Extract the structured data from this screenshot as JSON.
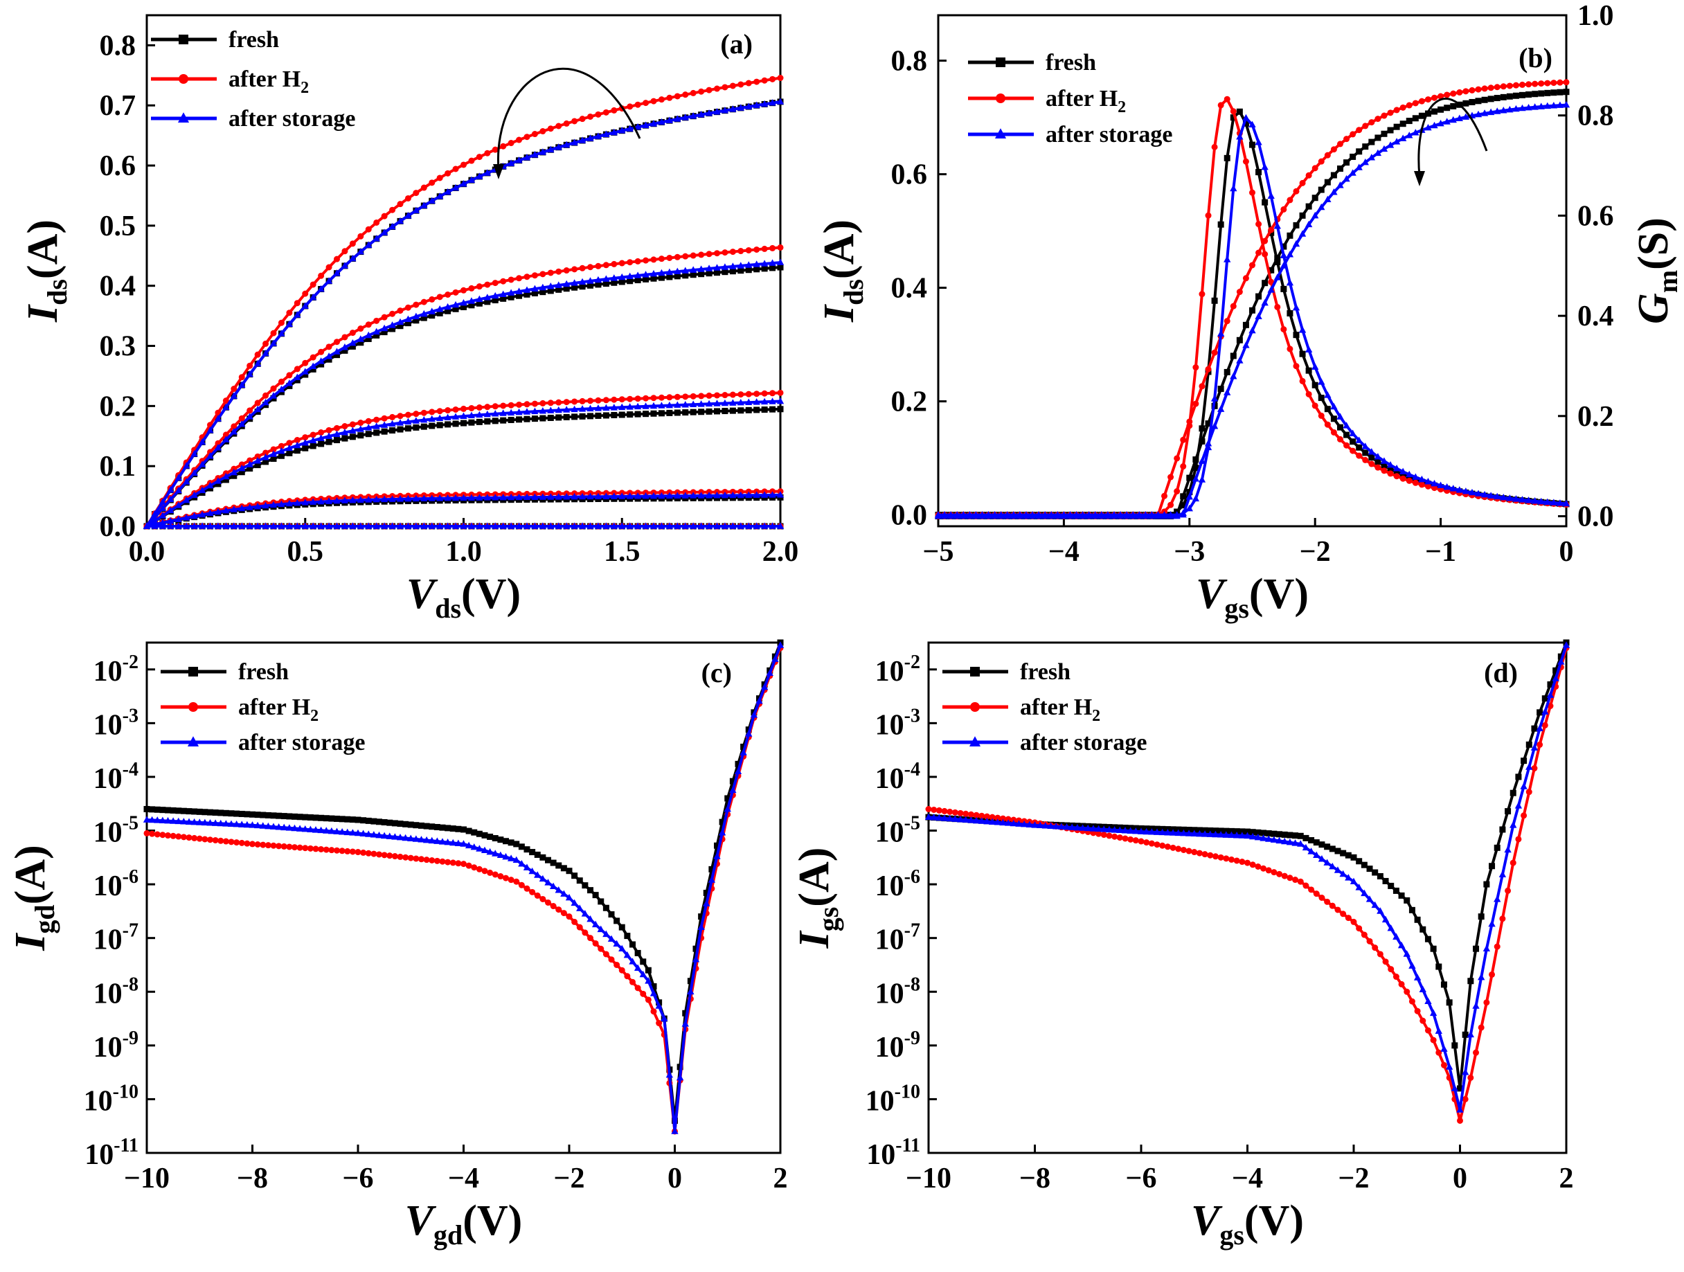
{
  "chart_data": [
    {
      "id": "a",
      "type": "line",
      "panel_label": "(a)",
      "xlabel": {
        "main": "V",
        "sub": "ds",
        "unit": "(V)"
      },
      "ylabel": {
        "main": "I",
        "sub": "ds",
        "unit": "(A)"
      },
      "xlim": [
        0,
        2.0
      ],
      "ylim": [
        0,
        0.85
      ],
      "xticks": [
        0.0,
        0.5,
        1.0,
        1.5,
        2.0
      ],
      "xtick_labels": [
        "0.0",
        "0.5",
        "1.0",
        "1.5",
        "2.0"
      ],
      "yticks": [
        0.0,
        0.1,
        0.2,
        0.3,
        0.4,
        0.5,
        0.6,
        0.7,
        0.8
      ],
      "ytick_labels": [
        "0.0",
        "0.1",
        "0.2",
        "0.3",
        "0.4",
        "0.5",
        "0.6",
        "0.7",
        "0.8"
      ],
      "legend": [
        {
          "name": "fresh",
          "color": "#000000",
          "marker": "square"
        },
        {
          "name": "after H",
          "sub": "2",
          "color": "#ff0000",
          "marker": "circle"
        },
        {
          "name": "after storage",
          "color": "#0000ff",
          "marker": "triangle"
        }
      ],
      "output_curves_saturation_current": [
        {
          "name": "fresh",
          "values": [
            0.0,
            0.048,
            0.195,
            0.432,
            0.712
          ]
        },
        {
          "name": "after H2",
          "values": [
            0.0,
            0.058,
            0.222,
            0.465,
            0.752
          ]
        },
        {
          "name": "after storage",
          "values": [
            0.0,
            0.052,
            0.208,
            0.44,
            0.712
          ]
        }
      ],
      "x_sample": [
        0,
        0.05,
        0.1,
        0.2,
        0.3,
        0.4,
        0.5,
        0.6,
        0.7,
        0.8,
        1.0,
        1.2,
        1.5,
        2.0
      ],
      "annotation": "curved arrow near curves at Vds≈1.3 V"
    },
    {
      "id": "b",
      "type": "line",
      "panel_label": "(b)",
      "xlabel": {
        "main": "V",
        "sub": "gs",
        "unit": "(V)"
      },
      "ylabel": {
        "main": "I",
        "sub": "ds",
        "unit": "(A)"
      },
      "ylabel_right": {
        "main": "G",
        "sub": "m",
        "unit": "(S)"
      },
      "xlim": [
        -5,
        0
      ],
      "ylim": [
        -0.02,
        0.88
      ],
      "ylim_right": [
        -0.02,
        1.0
      ],
      "xticks": [
        -5,
        -4,
        -3,
        -2,
        -1,
        0
      ],
      "xtick_labels": [
        "−5",
        "−4",
        "−3",
        "−2",
        "−1",
        "0"
      ],
      "yticks": [
        0.0,
        0.2,
        0.4,
        0.6,
        0.8
      ],
      "ytick_labels": [
        "0.0",
        "0.2",
        "0.4",
        "0.6",
        "0.8"
      ],
      "yticks_right": [
        0.0,
        0.2,
        0.4,
        0.6,
        0.8,
        1.0
      ],
      "ytick_labels_right": [
        "0.0",
        "0.2",
        "0.4",
        "0.6",
        "0.8",
        "1.0"
      ],
      "legend": [
        {
          "name": "fresh",
          "color": "#000000",
          "marker": "square"
        },
        {
          "name": "after H",
          "sub": "2",
          "color": "#ff0000",
          "marker": "circle"
        },
        {
          "name": "after storage",
          "color": "#0000ff",
          "marker": "triangle"
        }
      ],
      "transfer_series": [
        {
          "name": "fresh",
          "threshold_V": -3.1,
          "ids_at_0V": 0.745,
          "gm_peak_V": -2.62,
          "gm_peak_S": 0.81
        },
        {
          "name": "after H2",
          "threshold_V": -3.25,
          "ids_at_0V": 0.762,
          "gm_peak_V": -2.72,
          "gm_peak_S": 0.835
        },
        {
          "name": "after storage",
          "threshold_V": -3.05,
          "ids_at_0V": 0.722,
          "gm_peak_V": -2.55,
          "gm_peak_S": 0.795
        }
      ],
      "annotation": "curved arrow near Ids curves at Vgs≈−1"
    },
    {
      "id": "c",
      "type": "line",
      "panel_label": "(c)",
      "xlabel": {
        "main": "V",
        "sub": "gd",
        "unit": "(V)"
      },
      "ylabel": {
        "main": "I",
        "sub": "gd",
        "unit": "(A)"
      },
      "yscale": "log",
      "xlim": [
        -10,
        2
      ],
      "ylim_exp": [
        -11,
        -1.5
      ],
      "xticks": [
        -10,
        -8,
        -6,
        -4,
        -2,
        0,
        2
      ],
      "xtick_labels": [
        "−10",
        "−8",
        "−6",
        "−4",
        "−2",
        "0",
        "2"
      ],
      "yticks_exp": [
        -11,
        -10,
        -9,
        -8,
        -7,
        -6,
        -5,
        -4,
        -3,
        -2
      ],
      "ytick_exp_labels": [
        "-11",
        "-10",
        "-9",
        "-8",
        "-7",
        "-6",
        "-5",
        "-4",
        "-3",
        "-2"
      ],
      "ytick_base": "10",
      "legend": [
        {
          "name": "fresh",
          "color": "#000000",
          "marker": "square"
        },
        {
          "name": "after H",
          "sub": "2",
          "color": "#ff0000",
          "marker": "circle"
        },
        {
          "name": "after storage",
          "color": "#0000ff",
          "marker": "triangle"
        }
      ],
      "x_points": [
        -10,
        -8,
        -6,
        -4,
        -3,
        -2,
        -1.5,
        -1,
        -0.5,
        -0.2,
        0,
        0.2,
        0.5,
        1,
        1.5,
        2
      ],
      "series": [
        {
          "name": "fresh",
          "log10_values": [
            -4.6,
            -4.7,
            -4.8,
            -4.98,
            -5.25,
            -5.75,
            -6.2,
            -6.8,
            -7.6,
            -8.5,
            -10.4,
            -8.4,
            -6.6,
            -4.4,
            -2.8,
            -1.5
          ]
        },
        {
          "name": "after H2",
          "log10_values": [
            -5.05,
            -5.25,
            -5.4,
            -5.62,
            -5.95,
            -6.6,
            -7.1,
            -7.6,
            -8.15,
            -8.8,
            -10.6,
            -8.7,
            -7.0,
            -4.7,
            -2.9,
            -1.6
          ]
        },
        {
          "name": "after storage",
          "log10_values": [
            -4.8,
            -4.9,
            -5.05,
            -5.25,
            -5.55,
            -6.25,
            -6.75,
            -7.2,
            -7.8,
            -8.5,
            -10.6,
            -8.6,
            -6.8,
            -4.6,
            -2.85,
            -1.55
          ]
        }
      ]
    },
    {
      "id": "d",
      "type": "line",
      "panel_label": "(d)",
      "xlabel": {
        "main": "V",
        "sub": "gs",
        "unit": "(V)"
      },
      "ylabel": {
        "main": "I",
        "sub": "gs",
        "unit": "(A)"
      },
      "yscale": "log",
      "xlim": [
        -10,
        2
      ],
      "ylim_exp": [
        -11,
        -1.5
      ],
      "xticks": [
        -10,
        -8,
        -6,
        -4,
        -2,
        0,
        2
      ],
      "xtick_labels": [
        "−10",
        "−8",
        "−6",
        "−4",
        "−2",
        "0",
        "2"
      ],
      "yticks_exp": [
        -11,
        -10,
        -9,
        -8,
        -7,
        -6,
        -5,
        -4,
        -3,
        -2
      ],
      "ytick_exp_labels": [
        "-11",
        "-10",
        "-9",
        "-8",
        "-7",
        "-6",
        "-5",
        "-4",
        "-3",
        "-2"
      ],
      "ytick_base": "10",
      "legend": [
        {
          "name": "fresh",
          "color": "#000000",
          "marker": "square"
        },
        {
          "name": "after H",
          "sub": "2",
          "color": "#ff0000",
          "marker": "circle"
        },
        {
          "name": "after storage",
          "color": "#0000ff",
          "marker": "triangle"
        }
      ],
      "x_points": [
        -10,
        -8,
        -6,
        -4,
        -3,
        -2,
        -1.5,
        -1,
        -0.5,
        -0.2,
        0,
        0.2,
        0.5,
        1,
        1.5,
        2
      ],
      "series": [
        {
          "name": "fresh",
          "log10_values": [
            -4.75,
            -4.88,
            -4.96,
            -5.02,
            -5.1,
            -5.5,
            -5.85,
            -6.3,
            -7.2,
            -8.2,
            -9.8,
            -7.8,
            -6.0,
            -4.3,
            -2.8,
            -1.5
          ]
        },
        {
          "name": "after H2",
          "log10_values": [
            -4.6,
            -4.85,
            -5.2,
            -5.6,
            -5.95,
            -6.7,
            -7.3,
            -8.0,
            -8.9,
            -9.6,
            -10.4,
            -9.6,
            -8.2,
            -5.6,
            -3.4,
            -1.6
          ]
        },
        {
          "name": "after storage",
          "log10_values": [
            -4.75,
            -4.9,
            -5.02,
            -5.1,
            -5.25,
            -5.95,
            -6.5,
            -7.3,
            -8.4,
            -9.4,
            -10.2,
            -8.8,
            -7.2,
            -4.9,
            -3.1,
            -1.55
          ]
        }
      ]
    }
  ]
}
